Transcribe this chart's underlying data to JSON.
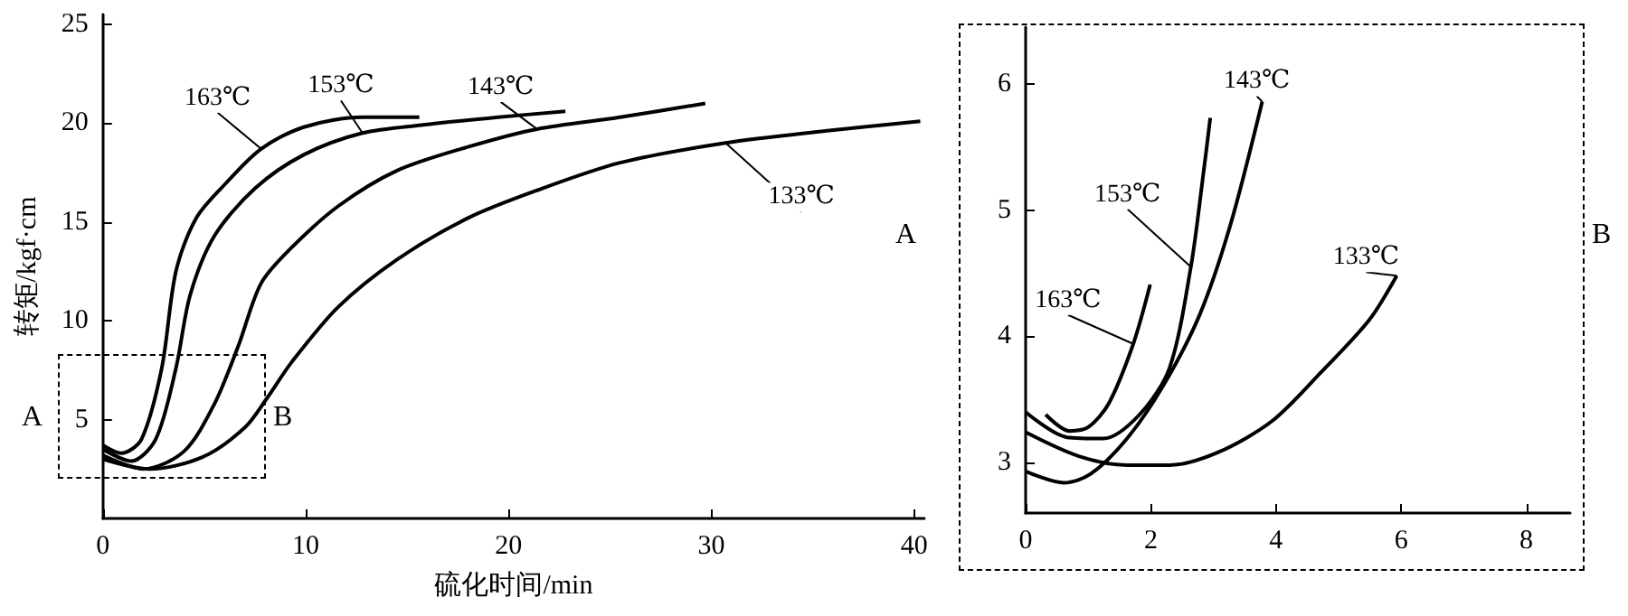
{
  "chart_data": [
    {
      "type": "line",
      "xlabel": "硫化时间/min",
      "ylabel": "转矩/kgf·cm",
      "xlim": [
        0,
        40.5
      ],
      "ylim": [
        0,
        25.5
      ],
      "xticks": [
        0,
        10,
        20,
        30,
        40
      ],
      "yticks": [
        5,
        10,
        15,
        20,
        25
      ],
      "marker": "none",
      "line_style": "solid",
      "annotations": [
        "A",
        "A",
        "B"
      ],
      "series": [
        {
          "name": "163℃",
          "color": "#000000",
          "x": [
            0,
            0.9,
            1.9,
            2.9,
            3.6,
            4.6,
            6.1,
            7.8,
            9.9,
            12.8,
            15.6
          ],
          "values": [
            3.7,
            3.3,
            4.0,
            7.6,
            12.5,
            15.2,
            17.0,
            18.7,
            19.8,
            20.3,
            20.3
          ]
        },
        {
          "name": "153℃",
          "color": "#000000",
          "x": [
            0,
            1.4,
            2.6,
            3.6,
            4.3,
            5.5,
            7.5,
            9.9,
            12.8,
            15.7,
            19.5,
            22.8
          ],
          "values": [
            3.5,
            2.9,
            4.0,
            7.6,
            11.3,
            14.3,
            16.7,
            18.4,
            19.5,
            19.9,
            20.3,
            20.6
          ]
        },
        {
          "name": "143℃",
          "color": "#000000",
          "x": [
            0,
            2.0,
            4.0,
            5.5,
            6.7,
            7.8,
            9.3,
            11.6,
            14.5,
            18.0,
            21.4,
            25.5,
            29.7
          ],
          "values": [
            3.2,
            2.5,
            3.4,
            5.8,
            8.8,
            11.9,
            13.7,
            15.8,
            17.6,
            18.8,
            19.7,
            20.3,
            21.0
          ]
        },
        {
          "name": "133℃",
          "color": "#000000",
          "x": [
            0,
            2.3,
            4.9,
            7.0,
            8.1,
            9.3,
            11.6,
            14.5,
            18.0,
            21.4,
            25.5,
            30.7,
            35.6,
            40.3
          ],
          "values": [
            3.0,
            2.5,
            3.1,
            4.6,
            6.1,
            7.9,
            10.7,
            13.1,
            15.2,
            16.6,
            18.0,
            19.0,
            19.6,
            20.1
          ]
        }
      ]
    },
    {
      "type": "line",
      "xlim": [
        0,
        8.7
      ],
      "ylim": [
        2.6,
        6.45
      ],
      "xticks": [
        0,
        2,
        4,
        6,
        8
      ],
      "yticks": [
        3,
        4,
        5,
        6
      ],
      "marker": "none",
      "line_style": "solid",
      "annotations": [
        "B"
      ],
      "series": [
        {
          "name": "163℃",
          "color": "#000000",
          "x": [
            0.32,
            0.7,
            1.0,
            1.33,
            1.72,
            1.99
          ],
          "values": [
            3.38,
            3.25,
            3.28,
            3.47,
            3.94,
            4.41
          ]
        },
        {
          "name": "153℃",
          "color": "#000000",
          "x": [
            0,
            0.66,
            1.24,
            1.82,
            2.3,
            2.64,
            2.83,
            2.95
          ],
          "values": [
            3.4,
            3.2,
            3.19,
            3.38,
            3.75,
            4.55,
            5.25,
            5.73
          ]
        },
        {
          "name": "143℃",
          "color": "#000000",
          "x": [
            0,
            0.61,
            1.04,
            1.62,
            2.2,
            2.78,
            3.27,
            3.78
          ],
          "values": [
            2.93,
            2.84,
            2.91,
            3.19,
            3.61,
            4.17,
            4.88,
            5.86
          ]
        },
        {
          "name": "133℃",
          "color": "#000000",
          "x": [
            0,
            0.85,
            1.62,
            2.3,
            3.07,
            3.94,
            4.71,
            5.49,
            5.93
          ],
          "values": [
            3.24,
            3.05,
            2.98,
            2.98,
            3.08,
            3.33,
            3.71,
            4.13,
            4.48
          ]
        }
      ]
    }
  ]
}
